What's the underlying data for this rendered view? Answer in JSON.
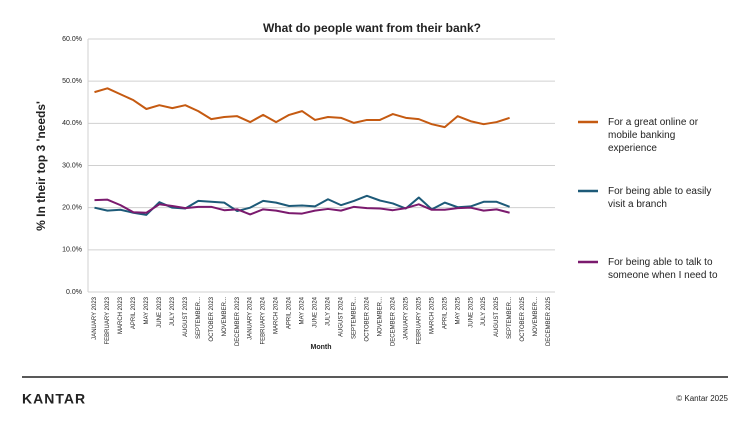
{
  "chart_data": {
    "type": "line",
    "title": "What do people want from their bank?",
    "ylabel": "% In their top 3 'needs'",
    "xlabel": "Month",
    "categories": [
      "JANUARY 2023",
      "FEBRUARY 2023",
      "MARCH 2023",
      "APRIL 2023",
      "MAY 2023",
      "JUNE 2023",
      "JULY 2023",
      "AUGUST 2023",
      "SEPTEMBER...",
      "OCTOBER 2023",
      "NOVEMBER...",
      "DECEMBER 2023",
      "JANUARY 2024",
      "FEBRUARY 2024",
      "MARCH 2024",
      "APRIL 2024",
      "MAY 2024",
      "JUNE 2024",
      "JULY 2024",
      "AUGUST 2024",
      "SEPTEMBER...",
      "OCTOBER 2024",
      "NOVEMBER...",
      "DECEMBER 2024",
      "JANUARY 2025",
      "FEBRUARY 2025",
      "MARCH 2025",
      "APRIL 2025",
      "MAY 2025",
      "JUNE 2025",
      "JULY 2025",
      "AUGUST 2025",
      "SEPTEMBER...",
      "OCTOBER 2025",
      "NOVEMBER...",
      "DECEMBER 2025"
    ],
    "series": [
      {
        "name": "For a great online or mobile banking experience",
        "color": "#c55a11",
        "values": [
          47.4,
          48.3,
          46.9,
          45.5,
          43.4,
          44.3,
          43.6,
          44.3,
          42.9,
          41.0,
          41.5,
          41.7,
          40.3,
          42.0,
          40.3,
          42.0,
          42.9,
          40.8,
          41.5,
          41.3,
          40.1,
          40.8,
          40.8,
          42.2,
          41.3,
          41.0,
          39.8,
          39.1,
          41.7,
          40.5,
          39.8,
          40.3,
          41.3,
          null,
          null,
          null
        ]
      },
      {
        "name": "For being able to easily visit a branch",
        "color": "#1d5a78",
        "values": [
          20.0,
          19.3,
          19.5,
          18.8,
          18.3,
          21.3,
          20.0,
          19.8,
          21.6,
          21.4,
          21.2,
          19.2,
          20.0,
          21.6,
          21.2,
          20.4,
          20.5,
          20.3,
          22.0,
          20.6,
          21.6,
          22.8,
          21.7,
          21.0,
          19.8,
          22.4,
          19.6,
          21.2,
          20.1,
          20.3,
          21.4,
          21.4,
          20.2,
          null,
          null,
          null
        ]
      },
      {
        "name": "For being able to talk to someone when I need to",
        "color": "#7b1a6e",
        "values": [
          21.8,
          21.9,
          20.6,
          18.9,
          18.8,
          20.8,
          20.4,
          19.9,
          20.2,
          20.2,
          19.4,
          19.6,
          18.4,
          19.6,
          19.3,
          18.7,
          18.6,
          19.3,
          19.7,
          19.3,
          20.2,
          19.9,
          19.8,
          19.4,
          19.9,
          20.8,
          19.5,
          19.5,
          19.9,
          20.0,
          19.3,
          19.6,
          18.8,
          null,
          null,
          null
        ]
      }
    ],
    "ylim": [
      0,
      60
    ],
    "yticks": [
      {
        "value": 0,
        "label": "0.0%"
      },
      {
        "value": 10,
        "label": "10.0%"
      },
      {
        "value": 20,
        "label": "20.0%"
      },
      {
        "value": 30,
        "label": "30.0%"
      },
      {
        "value": 40,
        "label": "40.0%"
      },
      {
        "value": 50,
        "label": "50.0%"
      },
      {
        "value": 60,
        "label": "60.0%"
      }
    ],
    "grid": true,
    "legend": "right"
  },
  "footer": {
    "logo": "KANTAR",
    "copyright": "© Kantar 2025"
  }
}
